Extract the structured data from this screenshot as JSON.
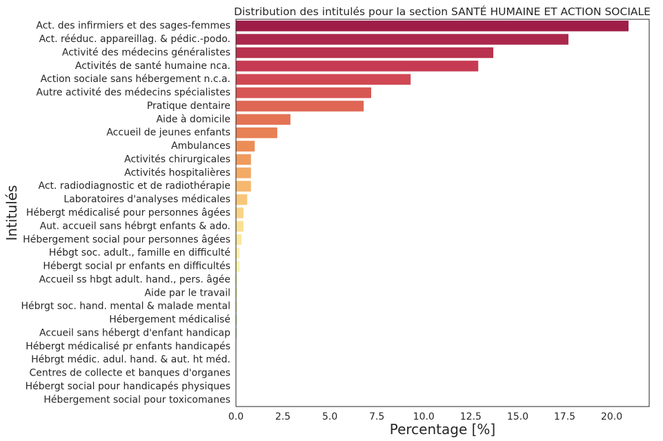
{
  "chart_data": {
    "type": "bar",
    "orientation": "horizontal",
    "title": "Distribution des intitulés pour la section SANTÉ HUMAINE ET ACTION SOCIALE",
    "xlabel": "Percentage [%]",
    "ylabel": "Intitulés",
    "xlim": [
      0,
      22
    ],
    "xticks": [
      0,
      2.5,
      5,
      7.5,
      10,
      12.5,
      15,
      17.5,
      20
    ],
    "xtick_labels": [
      "0.0",
      "2.5",
      "5.0",
      "7.5",
      "10.0",
      "12.5",
      "15.0",
      "17.5",
      "20.0"
    ],
    "grid": false,
    "palette": "Spectral",
    "categories": [
      "Act. des infirmiers et des sages-femmes",
      "Act. rééduc. appareillag. & pédic.-podo.",
      "Activité des médecins généralistes",
      "Activités de santé humaine nca.",
      "Action sociale sans hébergement n.c.a.",
      "Autre activité des médecins spécialistes",
      "Pratique dentaire",
      "Aide à domicile",
      "Accueil de jeunes enfants",
      "Ambulances",
      "Activités chirurgicales",
      "Activités hospitalières",
      "Act. radiodiagnostic et de radiothérapie",
      "Laboratoires d'analyses médicales",
      "Hébergt médicalisé pour personnes âgées",
      "Aut. accueil sans hébrgt enfants & ado.",
      "Hébergement social pour personnes âgées",
      "Hébgt soc. adult., famille en difficulté",
      "Hébergt social pr enfants en difficultés",
      "Accueil ss hbgt adult. hand., pers. âgée",
      "Aide par le travail",
      "Hébrgt soc. hand. mental & malade mental",
      "Hébergement médicalisé",
      "Accueil sans hébergt d'enfant handicap",
      "Hébergt médicalisé pr enfants handicapés",
      "Hébrgt médic. adul. hand. & aut. ht méd.",
      "Centres de collecte et banques d'organes",
      "Hébergt social pour handicapés physiques",
      "Hébergement social pour toxicomanes"
    ],
    "values": [
      20.9,
      17.7,
      13.7,
      12.9,
      9.3,
      7.2,
      6.8,
      2.9,
      2.2,
      1.0,
      0.8,
      0.8,
      0.8,
      0.6,
      0.4,
      0.4,
      0.3,
      0.2,
      0.2,
      0.05,
      0.05,
      0.05,
      0.05,
      0.04,
      0.02,
      0.02,
      0.01,
      0.01,
      0.01
    ]
  }
}
